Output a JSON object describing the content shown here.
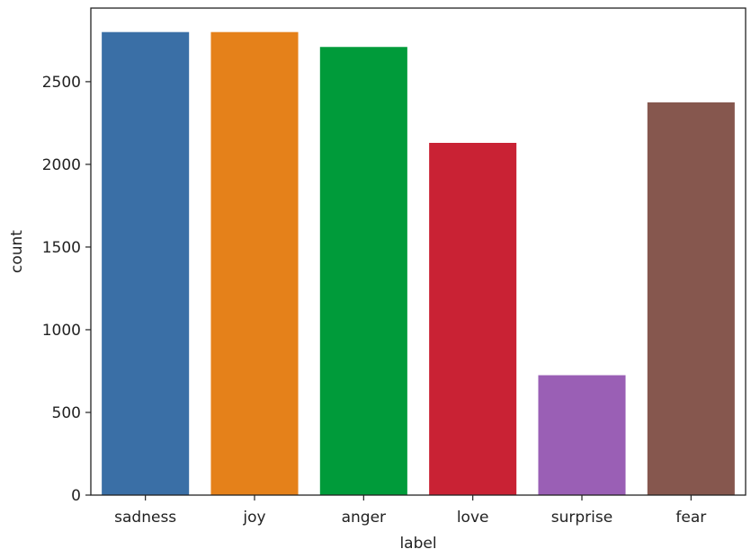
{
  "chart_data": {
    "type": "bar",
    "categories": [
      "sadness",
      "joy",
      "anger",
      "love",
      "surprise",
      "fear"
    ],
    "values": [
      2800,
      2800,
      2710,
      2130,
      725,
      2375
    ],
    "colors": [
      "#3a6fa6",
      "#e5811a",
      "#009b3a",
      "#c92234",
      "#9a5fb5",
      "#86574e"
    ],
    "xlabel": "label",
    "ylabel": "count",
    "ylim": [
      0,
      3000
    ],
    "yticks": [
      0,
      500,
      1000,
      1500,
      2000,
      2500
    ],
    "grid": false,
    "legend": "none"
  }
}
